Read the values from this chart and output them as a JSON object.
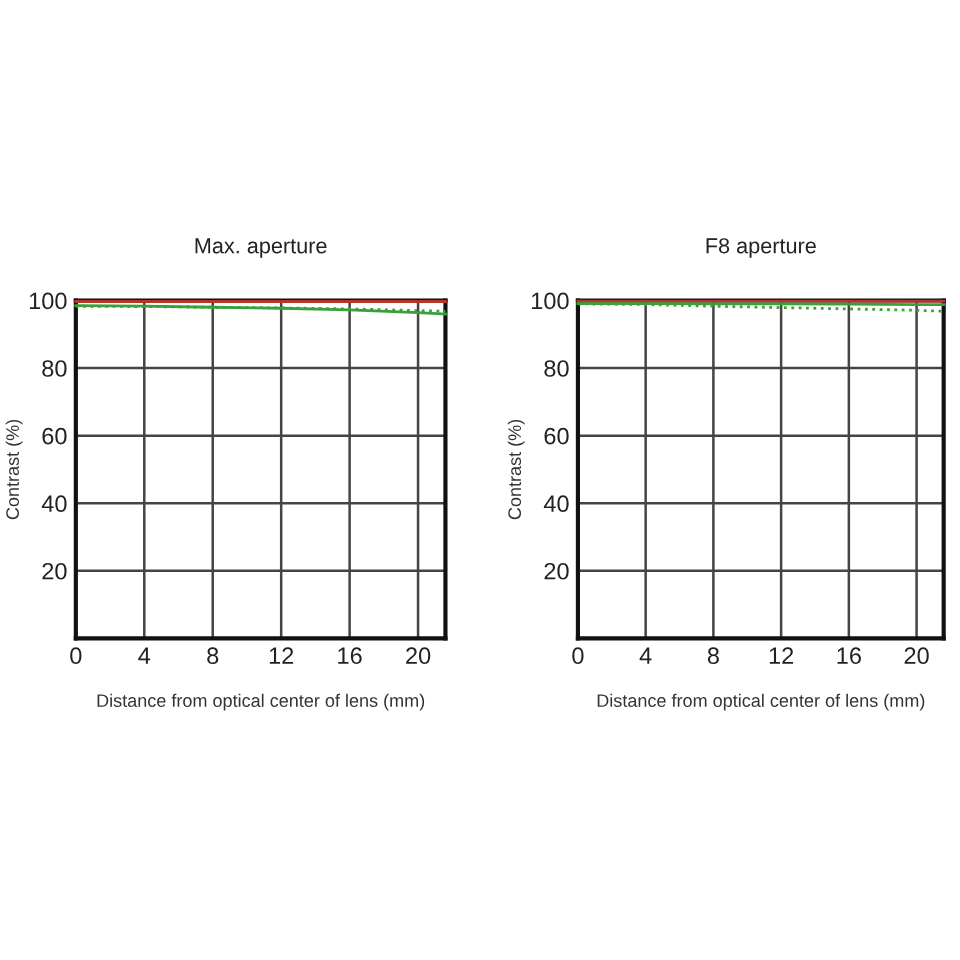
{
  "chart_data": [
    {
      "type": "line",
      "title": "Max. aperture",
      "xlabel": "Distance from optical center of lens (mm)",
      "ylabel": "Contrast (%)",
      "x": [
        0,
        4,
        8,
        12,
        16,
        20,
        21.6
      ],
      "series": [
        {
          "color": "#b5352a",
          "line_style": "solid",
          "values": [
            99.7,
            99.7,
            99.7,
            99.7,
            99.7,
            99.7,
            99.7
          ]
        },
        {
          "color": "#3aa03a",
          "line_style": "dotted",
          "values": [
            98.3,
            98.2,
            98,
            97.8,
            97.5,
            97,
            96.8
          ]
        },
        {
          "color": "#3aa03a",
          "line_style": "solid",
          "values": [
            98.5,
            98.3,
            98,
            97.7,
            97.2,
            96.4,
            96
          ]
        }
      ],
      "xlim": [
        0,
        21.6
      ],
      "xticks": [
        0,
        4,
        8,
        12,
        16,
        20
      ],
      "ylim": [
        0,
        100
      ],
      "yticks": [
        {
          "value": 0,
          "label": null
        },
        20,
        40,
        60,
        80,
        100
      ],
      "grid": true
    },
    {
      "type": "line",
      "title": "F8 aperture",
      "xlabel": "Distance from optical center of lens (mm)",
      "ylabel": "Contrast (%)",
      "x": [
        0,
        4,
        8,
        12,
        16,
        20,
        21.6
      ],
      "series": [
        {
          "color": "#b5352a",
          "line_style": "solid",
          "values": [
            99.8,
            99.8,
            99.8,
            99.8,
            99.8,
            99.8,
            99.8
          ]
        },
        {
          "color": "#3aa03a",
          "line_style": "solid",
          "values": [
            99.1,
            99.1,
            99,
            99,
            98.9,
            98.8,
            98.8
          ]
        },
        {
          "color": "#3aa03a",
          "line_style": "dotted",
          "values": [
            99,
            98.8,
            98.3,
            97.9,
            97.5,
            97.1,
            96.8
          ]
        }
      ],
      "xlim": [
        0,
        21.6
      ],
      "xticks": [
        0,
        4,
        8,
        12,
        16,
        20
      ],
      "ylim": [
        0,
        100
      ],
      "yticks": [
        {
          "value": 0,
          "label": null
        },
        20,
        40,
        60,
        80,
        100
      ],
      "grid": true
    }
  ]
}
